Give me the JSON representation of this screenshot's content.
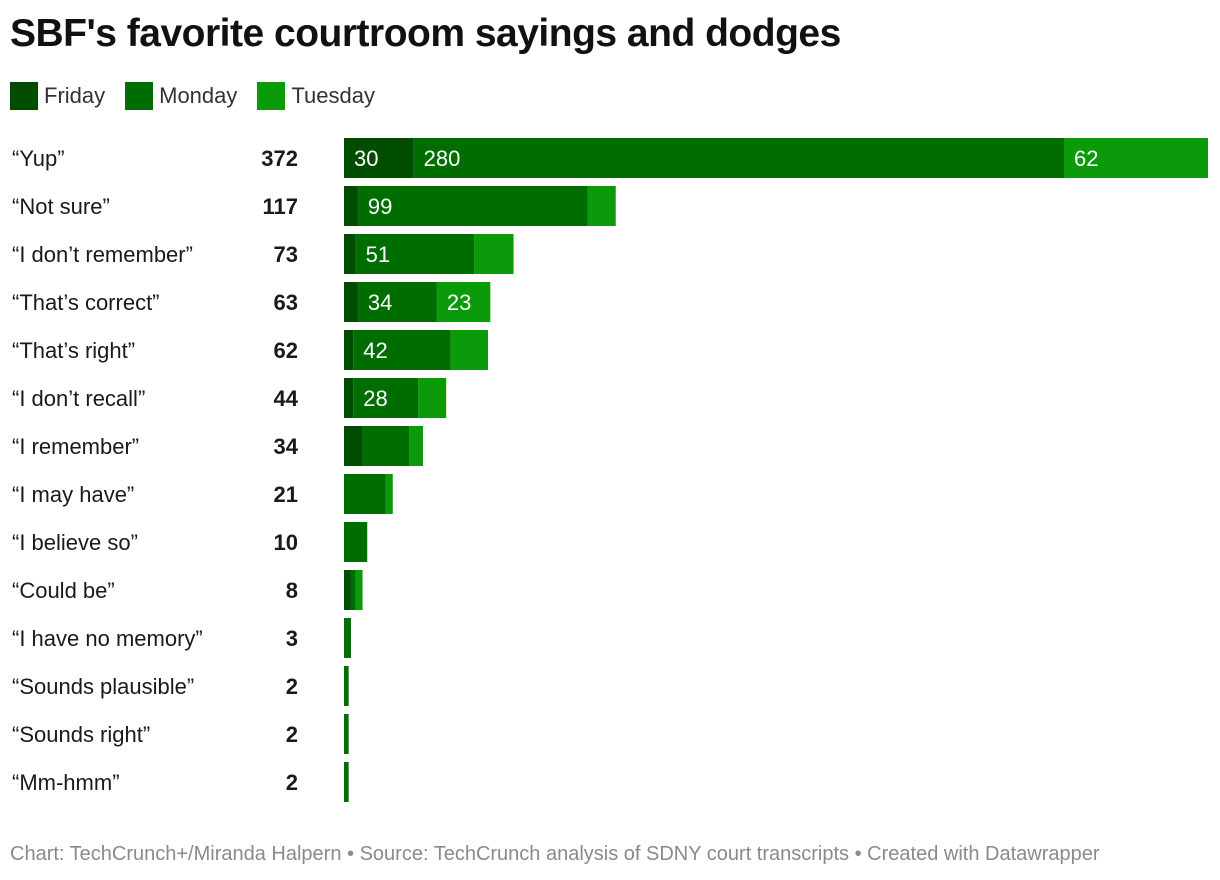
{
  "title": "SBF's favorite courtroom sayings and dodges",
  "footer": "Chart: TechCrunch+/Miranda Halpern • Source: TechCrunch analysis of SDNY court transcripts • Created with Datawrapper",
  "colors": {
    "friday": "#004d00",
    "monday": "#006d00",
    "tuesday": "#0a9a0a",
    "label_text": "#ffffff"
  },
  "chart_data": {
    "type": "bar",
    "orientation": "horizontal",
    "stacked": true,
    "title": "SBF's favorite courtroom sayings and dodges",
    "legend": [
      "Friday",
      "Monday",
      "Tuesday"
    ],
    "legend_position": "top-left",
    "categories": [
      "“Yup”",
      "“Not sure”",
      "“I don’t remember”",
      "“That’s correct”",
      "“That’s right”",
      "“I don’t recall”",
      "“I remember”",
      "“I may have”",
      "“I believe so”",
      "“Could be”",
      "“I have no memory”",
      "“Sounds plausible”",
      "“Sounds right”",
      "“Mm-hmm”"
    ],
    "totals": [
      "372",
      "117",
      "73",
      "63",
      "62",
      "44",
      "34",
      "21",
      "10",
      "8",
      "3",
      "2",
      "2",
      "2"
    ],
    "series": [
      {
        "name": "Friday",
        "values": [
          30,
          6,
          5,
          6,
          4,
          4,
          8,
          0,
          0,
          3,
          0,
          0,
          0,
          0
        ],
        "labels": [
          "30",
          "",
          "",
          "",
          "",
          "",
          "",
          "",
          "",
          "",
          "",
          "",
          "",
          ""
        ]
      },
      {
        "name": "Monday",
        "values": [
          280,
          99,
          51,
          34,
          42,
          28,
          20,
          18,
          10,
          2,
          3,
          2,
          2,
          2
        ],
        "labels": [
          "280",
          "99",
          "51",
          "34",
          "42",
          "28",
          "",
          "",
          "",
          "",
          "",
          "",
          "",
          ""
        ]
      },
      {
        "name": "Tuesday",
        "values": [
          62,
          12,
          17,
          23,
          16,
          12,
          6,
          3,
          0,
          3,
          0,
          0,
          0,
          0
        ],
        "labels": [
          "62",
          "",
          "",
          "23",
          "",
          "",
          "",
          "",
          "",
          "",
          "",
          "",
          "",
          ""
        ]
      }
    ],
    "xlim": [
      0,
      372
    ],
    "grid": false
  }
}
